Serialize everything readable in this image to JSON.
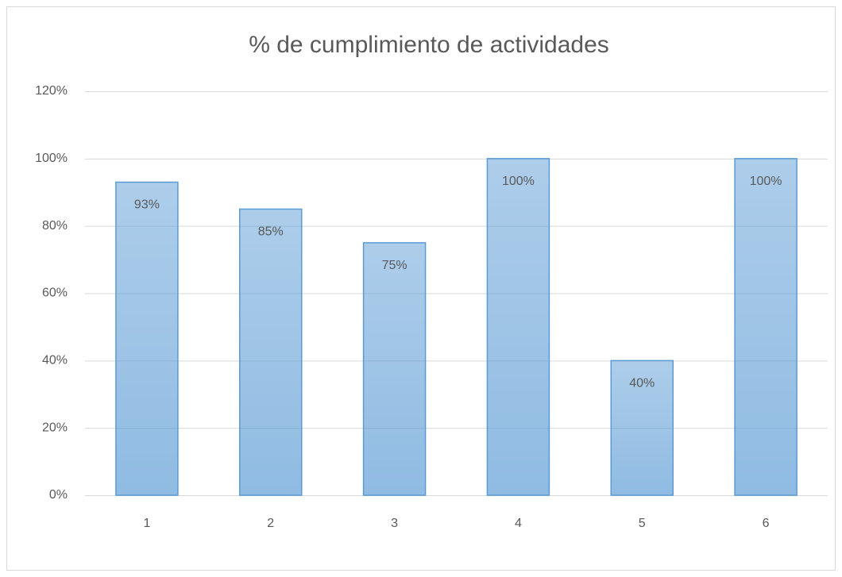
{
  "chart_data": {
    "type": "bar",
    "title": "% de cumplimiento  de actividades",
    "categories": [
      "1",
      "2",
      "3",
      "4",
      "5",
      "6"
    ],
    "values": [
      93,
      85,
      75,
      100,
      40,
      100
    ],
    "value_labels": [
      "93%",
      "85%",
      "75%",
      "100%",
      "40%",
      "100%"
    ],
    "color": "#5b9bd5",
    "ylim": [
      0,
      120
    ],
    "yticks": [
      {
        "value": 0,
        "label": "0%"
      },
      {
        "value": 20,
        "label": "20%"
      },
      {
        "value": 40,
        "label": "40%"
      },
      {
        "value": 60,
        "label": "60%"
      },
      {
        "value": 80,
        "label": "80%"
      },
      {
        "value": 100,
        "label": "100%"
      },
      {
        "value": 120,
        "label": "120%"
      }
    ],
    "grid": true
  }
}
